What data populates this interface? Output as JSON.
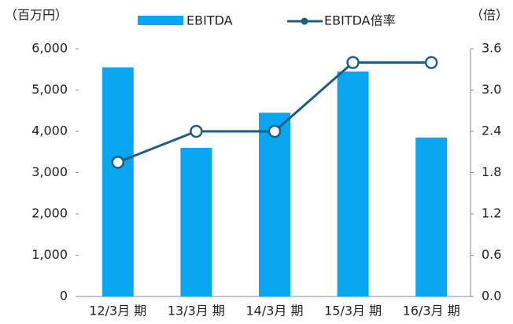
{
  "chart_data": {
    "type": "bar_line",
    "y_label": "（百万円）",
    "y2_label": "（倍）",
    "categories": [
      "12/3月 期",
      "13/3月 期",
      "14/3月 期",
      "15/3月 期",
      "16/3月 期"
    ],
    "series": [
      {
        "name": "EBITDA",
        "type": "bar",
        "color": "#0aa6ef",
        "values": [
          5550,
          3600,
          4450,
          5450,
          3850
        ]
      },
      {
        "name": "EBITDA倍率",
        "type": "line",
        "color": "#1b5f86",
        "axis": "y2",
        "values": [
          1.95,
          2.4,
          2.4,
          3.4,
          3.4
        ]
      }
    ],
    "ylim": [
      0,
      6000
    ],
    "yticks": [
      0,
      {
        "value": 1000,
        "label": "1,000"
      },
      {
        "value": 2000,
        "label": "2,000"
      },
      {
        "value": 3000,
        "label": "3,000"
      },
      {
        "value": 4000,
        "label": "4,000"
      },
      {
        "value": 5000,
        "label": "5,000"
      },
      {
        "value": 6000,
        "label": "6,000"
      }
    ],
    "y2lim": [
      0,
      3.6
    ],
    "y2ticks": [
      {
        "value": 0,
        "label": "0.0"
      },
      0.6,
      1.2,
      1.8,
      2.4,
      {
        "value": 3,
        "label": "3.0"
      },
      3.6
    ],
    "grid": false,
    "legend": "top"
  }
}
